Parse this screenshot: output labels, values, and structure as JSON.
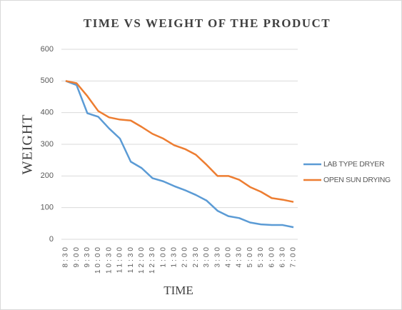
{
  "chart_data": {
    "type": "line",
    "title": "TIME VS WEIGHT OF THE PRODUCT",
    "x_label": "TIME",
    "y_label": "WEIGHT",
    "categories": [
      "8:30",
      "9:00",
      "9:30",
      "10:00",
      "10:30",
      "11:00",
      "11:30",
      "12:00",
      "12:30",
      "1:00",
      "1:30",
      "2:00",
      "2:30",
      "3:00",
      "3:30",
      "4:00",
      "4:30",
      "5:00",
      "5:30",
      "6:00",
      "6:30",
      "7:00"
    ],
    "series": [
      {
        "name": "LAB TYPE DRYER",
        "color": "#5b9bd5",
        "values": [
          500,
          487,
          398,
          387,
          350,
          318,
          245,
          225,
          193,
          183,
          168,
          155,
          140,
          122,
          90,
          73,
          67,
          53,
          47,
          45,
          45,
          38
        ]
      },
      {
        "name": "OPEN SUN DRYING",
        "color": "#ed7d31",
        "values": [
          500,
          493,
          452,
          405,
          385,
          378,
          375,
          355,
          333,
          318,
          297,
          285,
          267,
          235,
          200,
          200,
          188,
          165,
          150,
          130,
          125,
          118
        ]
      }
    ],
    "ylim": [
      0,
      600
    ],
    "yticks": [
      0,
      100,
      200,
      300,
      400,
      500,
      600
    ],
    "grid": true,
    "legend": "right"
  }
}
